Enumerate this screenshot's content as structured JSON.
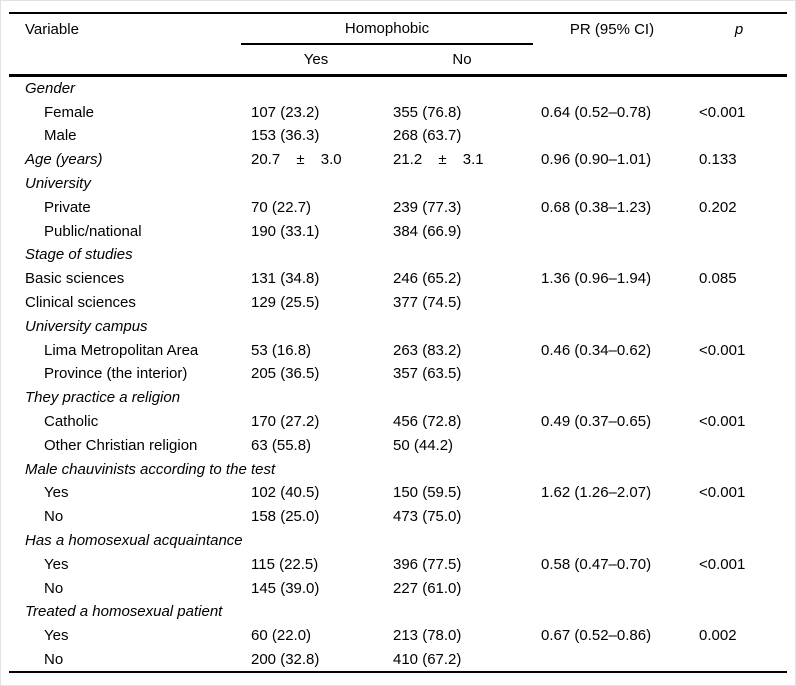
{
  "colors": {
    "text": "#000000",
    "background": "#ffffff",
    "rule": "#000000"
  },
  "table": {
    "header": {
      "variable": "Variable",
      "group": "Homophobic",
      "yes": "Yes",
      "no": "No",
      "pr": "PR (95% CI)",
      "p": "p"
    },
    "rows": [
      {
        "label": "Gender",
        "italic": true,
        "indent": 0,
        "yes": "",
        "no": "",
        "pr": "",
        "p": ""
      },
      {
        "label": "Female",
        "italic": false,
        "indent": 1,
        "yes": "107 (23.2)",
        "no": "355 (76.8)",
        "pr": "0.64 (0.52–0.78)",
        "p": "<0.001"
      },
      {
        "label": "Male",
        "italic": false,
        "indent": 1,
        "yes": "153 (36.3)",
        "no": "268 (63.7)",
        "pr": "",
        "p": ""
      },
      {
        "label": "Age (years)",
        "italic": true,
        "indent": 0,
        "yes": "20.7 ± 3.0",
        "no": "21.2 ± 3.1",
        "pr": "0.96 (0.90–1.01)",
        "p": "0.133",
        "mean": true
      },
      {
        "label": "University",
        "italic": true,
        "indent": 0,
        "yes": "",
        "no": "",
        "pr": "",
        "p": ""
      },
      {
        "label": "Private",
        "italic": false,
        "indent": 1,
        "yes": "70 (22.7)",
        "no": "239 (77.3)",
        "pr": "0.68 (0.38–1.23)",
        "p": "0.202"
      },
      {
        "label": "Public/national",
        "italic": false,
        "indent": 1,
        "yes": "190 (33.1)",
        "no": "384 (66.9)",
        "pr": "",
        "p": ""
      },
      {
        "label": "Stage of studies",
        "italic": true,
        "indent": 0,
        "yes": "",
        "no": "",
        "pr": "",
        "p": ""
      },
      {
        "label": "Basic sciences",
        "italic": false,
        "indent": 0,
        "yes": "131 (34.8)",
        "no": "246 (65.2)",
        "pr": "1.36 (0.96–1.94)",
        "p": "0.085"
      },
      {
        "label": "Clinical sciences",
        "italic": false,
        "indent": 0,
        "yes": "129 (25.5)",
        "no": "377 (74.5)",
        "pr": "",
        "p": ""
      },
      {
        "label": "University campus",
        "italic": true,
        "indent": 0,
        "yes": "",
        "no": "",
        "pr": "",
        "p": ""
      },
      {
        "label": "Lima Metropolitan Area",
        "italic": false,
        "indent": 1,
        "yes": "53 (16.8)",
        "no": "263 (83.2)",
        "pr": "0.46 (0.34–0.62)",
        "p": "<0.001"
      },
      {
        "label": "Province (the interior)",
        "italic": false,
        "indent": 1,
        "yes": "205 (36.5)",
        "no": "357 (63.5)",
        "pr": "",
        "p": ""
      },
      {
        "label": "They practice a religion",
        "italic": true,
        "indent": 0,
        "yes": "",
        "no": "",
        "pr": "",
        "p": ""
      },
      {
        "label": "Catholic",
        "italic": false,
        "indent": 1,
        "yes": "170 (27.2)",
        "no": "456 (72.8)",
        "pr": "0.49 (0.37–0.65)",
        "p": "<0.001"
      },
      {
        "label": "Other Christian religion",
        "italic": false,
        "indent": 1,
        "yes": "63 (55.8)",
        "no": "50 (44.2)",
        "pr": "",
        "p": ""
      },
      {
        "label": "Male chauvinists according to the test",
        "italic": true,
        "indent": 0,
        "yes": "",
        "no": "",
        "pr": "",
        "p": ""
      },
      {
        "label": "Yes",
        "italic": false,
        "indent": 1,
        "yes": "102 (40.5)",
        "no": "150 (59.5)",
        "pr": "1.62 (1.26–2.07)",
        "p": "<0.001"
      },
      {
        "label": "No",
        "italic": false,
        "indent": 1,
        "yes": "158 (25.0)",
        "no": "473 (75.0)",
        "pr": "",
        "p": ""
      },
      {
        "label": "Has a homosexual acquaintance",
        "italic": true,
        "indent": 0,
        "yes": "",
        "no": "",
        "pr": "",
        "p": ""
      },
      {
        "label": "Yes",
        "italic": false,
        "indent": 1,
        "yes": "115 (22.5)",
        "no": "396 (77.5)",
        "pr": "0.58 (0.47–0.70)",
        "p": "<0.001"
      },
      {
        "label": "No",
        "italic": false,
        "indent": 1,
        "yes": "145 (39.0)",
        "no": "227 (61.0)",
        "pr": "",
        "p": ""
      },
      {
        "label": "Treated a homosexual patient",
        "italic": true,
        "indent": 0,
        "yes": "",
        "no": "",
        "pr": "",
        "p": ""
      },
      {
        "label": "Yes",
        "italic": false,
        "indent": 1,
        "yes": "60 (22.0)",
        "no": "213 (78.0)",
        "pr": "0.67 (0.52–0.86)",
        "p": "0.002"
      },
      {
        "label": "No",
        "italic": false,
        "indent": 1,
        "yes": "200 (32.8)",
        "no": "410 (67.2)",
        "pr": "",
        "p": ""
      }
    ]
  }
}
